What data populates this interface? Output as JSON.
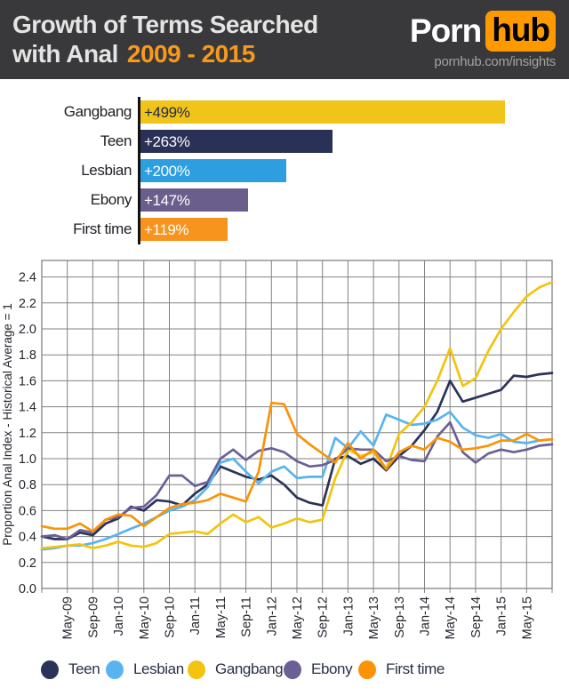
{
  "header": {
    "title_line1": "Growth of Terms Searched",
    "title_line2": "with Anal",
    "years": "2009 - 2015",
    "logo_porn": "Porn",
    "logo_hub": "hub",
    "logo_url": "pornhub.com/insights"
  },
  "colors": {
    "header_bg": "#39393b",
    "accent_orange": "#f8991d",
    "logo_orange": "#ff9900",
    "grid": "#828282",
    "axis_text": "#26262e",
    "bar_axis": "#121212"
  },
  "chart_data": [
    {
      "type": "bar",
      "orientation": "horizontal",
      "categories": [
        "Gangbang",
        "Teen",
        "Lesbian",
        "Ebony",
        "First time"
      ],
      "values": [
        499,
        263,
        200,
        147,
        119
      ],
      "value_labels": [
        "+499%",
        "+263%",
        "+200%",
        "+147%",
        "+119%"
      ],
      "bar_colors": [
        "#f0c419",
        "#293156",
        "#2d9ee0",
        "#6a5f8c",
        "#f7941e"
      ],
      "value_label_colors": [
        "#232a4d",
        "#ffffff",
        "#ffffff",
        "#ffffff",
        "#ffffff"
      ],
      "xlim": [
        0,
        499
      ]
    },
    {
      "type": "line",
      "ylabel": "Proportion Anal Index - Historical Average = 1",
      "ylim": [
        0,
        2.53
      ],
      "ytick_labels": [
        "0.0",
        "0.2",
        "0.4",
        "0.6",
        "0.8",
        "1.0",
        "1.2",
        "1.4",
        "1.6",
        "1.8",
        "2.0",
        "2.2",
        "2.4"
      ],
      "x_tick_labels": [
        "May-09",
        "Sep-09",
        "Jan-10",
        "May-10",
        "Sep-10",
        "Jan-11",
        "May-11",
        "Sep-11",
        "Jan-12",
        "May-12",
        "Sep-12",
        "Jan-13",
        "May-13",
        "Sep-13",
        "Jan-14",
        "May-14",
        "Sep-14",
        "Jan-15",
        "May-15"
      ],
      "points_per_tick_interval": 2,
      "grid": true,
      "series": [
        {
          "name": "Teen",
          "color": "#2b3359",
          "values": [
            0.4,
            0.38,
            0.38,
            0.43,
            0.41,
            0.5,
            0.54,
            0.63,
            0.6,
            0.68,
            0.67,
            0.64,
            0.73,
            0.8,
            0.94,
            0.9,
            0.86,
            0.84,
            0.87,
            0.8,
            0.7,
            0.66,
            0.64,
            1.0,
            1.02,
            0.96,
            1.0,
            0.91,
            1.02,
            1.1,
            1.22,
            1.36,
            1.6,
            1.44,
            1.47,
            1.5,
            1.53,
            1.64,
            1.63,
            1.65,
            1.66
          ]
        },
        {
          "name": "Lesbian",
          "color": "#58b4f0",
          "values": [
            0.3,
            0.31,
            0.33,
            0.33,
            0.35,
            0.38,
            0.42,
            0.46,
            0.5,
            0.55,
            0.6,
            0.63,
            0.68,
            0.78,
            0.97,
            1.0,
            0.9,
            0.81,
            0.9,
            0.94,
            0.85,
            0.86,
            0.86,
            1.16,
            1.08,
            1.21,
            1.1,
            1.34,
            1.3,
            1.26,
            1.27,
            1.3,
            1.36,
            1.24,
            1.18,
            1.16,
            1.19,
            1.13,
            1.12,
            1.14,
            1.15
          ]
        },
        {
          "name": "Gangbang",
          "color": "#f2c40e",
          "values": [
            0.31,
            0.32,
            0.33,
            0.34,
            0.31,
            0.33,
            0.36,
            0.33,
            0.32,
            0.35,
            0.42,
            0.43,
            0.44,
            0.42,
            0.5,
            0.57,
            0.51,
            0.55,
            0.47,
            0.5,
            0.54,
            0.51,
            0.53,
            0.85,
            1.07,
            1.02,
            1.05,
            0.92,
            1.19,
            1.28,
            1.4,
            1.6,
            1.85,
            1.56,
            1.62,
            1.83,
            2.0,
            2.13,
            2.25,
            2.32,
            2.36
          ]
        },
        {
          "name": "Ebony",
          "color": "#6b6096",
          "values": [
            0.4,
            0.41,
            0.38,
            0.45,
            0.43,
            0.53,
            0.55,
            0.62,
            0.63,
            0.72,
            0.87,
            0.87,
            0.79,
            0.82,
            1.0,
            1.07,
            0.99,
            1.06,
            1.08,
            1.05,
            0.98,
            0.94,
            0.95,
            0.99,
            1.08,
            1.07,
            1.07,
            0.98,
            1.02,
            0.99,
            0.98,
            1.17,
            1.28,
            1.05,
            0.97,
            1.04,
            1.07,
            1.05,
            1.07,
            1.1,
            1.11
          ]
        },
        {
          "name": "First time",
          "color": "#fa9306",
          "values": [
            0.48,
            0.46,
            0.46,
            0.5,
            0.44,
            0.53,
            0.57,
            0.56,
            0.48,
            0.55,
            0.62,
            0.65,
            0.66,
            0.68,
            0.73,
            0.7,
            0.67,
            0.9,
            1.43,
            1.42,
            1.19,
            1.11,
            1.04,
            0.97,
            1.12,
            1.0,
            1.07,
            0.92,
            1.05,
            1.1,
            1.07,
            1.16,
            1.13,
            1.07,
            1.08,
            1.1,
            1.14,
            1.14,
            1.19,
            1.14,
            1.15
          ]
        }
      ]
    }
  ],
  "legend": {
    "items": [
      {
        "label": "Teen",
        "color": "#2b3359"
      },
      {
        "label": "Lesbian",
        "color": "#58b4f0"
      },
      {
        "label": "Gangbang",
        "color": "#f2c40e"
      },
      {
        "label": "Ebony",
        "color": "#6b6096"
      },
      {
        "label": "First time",
        "color": "#fa9306"
      }
    ],
    "item_lefts": [
      46,
      119,
      211,
      319,
      403
    ]
  }
}
